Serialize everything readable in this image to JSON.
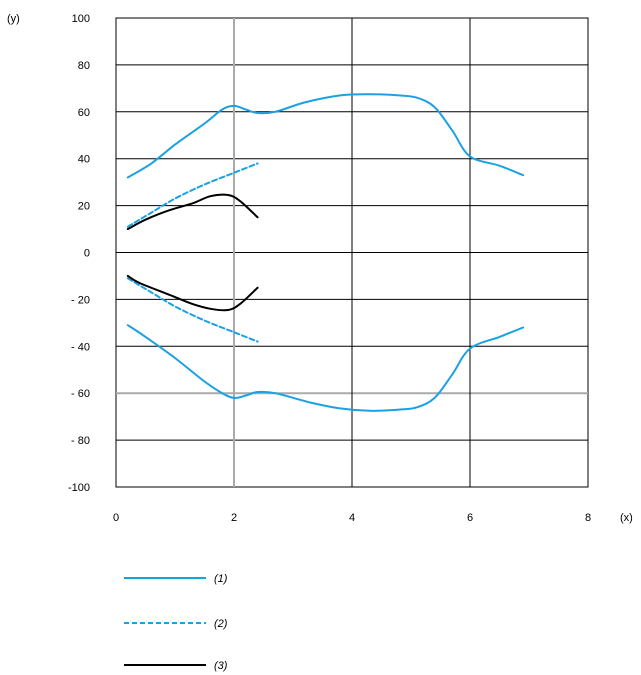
{
  "chart_data": {
    "type": "line",
    "title": "",
    "xlabel": "(x)",
    "ylabel": "(y)",
    "xlim": [
      0,
      8
    ],
    "ylim": [
      -100,
      100
    ],
    "x_ticks": [
      0,
      2,
      4,
      6,
      8
    ],
    "y_ticks": [
      100,
      80,
      60,
      40,
      20,
      0,
      -20,
      -40,
      -60,
      -80,
      -100
    ],
    "x_tick_labels": [
      "0",
      "2",
      "4",
      "6",
      "8"
    ],
    "y_tick_labels": [
      "100",
      "80",
      "60",
      "40",
      "20",
      "0",
      "- 20",
      "- 40",
      "- 60",
      "- 80",
      "-100"
    ],
    "grid": true,
    "legend_position": "bottom-left",
    "series": [
      {
        "name": "(1)",
        "color": "#1ba1e2",
        "dash": "solid",
        "upper": [
          [
            0.2,
            32
          ],
          [
            0.6,
            38
          ],
          [
            1.0,
            46
          ],
          [
            1.5,
            55
          ],
          [
            1.8,
            61
          ],
          [
            2.0,
            62.5
          ],
          [
            2.2,
            61
          ],
          [
            2.4,
            59.5
          ],
          [
            2.7,
            60
          ],
          [
            3.2,
            64
          ],
          [
            3.8,
            67
          ],
          [
            4.3,
            67.5
          ],
          [
            4.8,
            67
          ],
          [
            5.1,
            66
          ],
          [
            5.4,
            62
          ],
          [
            5.7,
            52
          ],
          [
            6.0,
            41
          ],
          [
            6.5,
            37
          ],
          [
            6.9,
            33
          ]
        ],
        "lower": [
          [
            0.2,
            -31
          ],
          [
            0.5,
            -36
          ],
          [
            1.0,
            -45
          ],
          [
            1.5,
            -55
          ],
          [
            1.8,
            -60
          ],
          [
            2.0,
            -62
          ],
          [
            2.2,
            -61
          ],
          [
            2.4,
            -59.5
          ],
          [
            2.7,
            -60
          ],
          [
            3.3,
            -64
          ],
          [
            3.8,
            -66.5
          ],
          [
            4.3,
            -67.5
          ],
          [
            4.8,
            -67
          ],
          [
            5.1,
            -66
          ],
          [
            5.4,
            -62
          ],
          [
            5.7,
            -52
          ],
          [
            6.0,
            -41
          ],
          [
            6.5,
            -36
          ],
          [
            6.9,
            -32
          ]
        ]
      },
      {
        "name": "(2)",
        "color": "#1ba1e2",
        "dash": "dashed",
        "upper": [
          [
            0.2,
            11
          ],
          [
            0.6,
            17
          ],
          [
            1.0,
            23
          ],
          [
            1.5,
            29
          ],
          [
            2.0,
            34
          ],
          [
            2.4,
            38
          ]
        ],
        "lower": [
          [
            0.2,
            -11
          ],
          [
            0.6,
            -17
          ],
          [
            1.0,
            -23
          ],
          [
            1.5,
            -29
          ],
          [
            2.0,
            -34
          ],
          [
            2.4,
            -38
          ]
        ]
      },
      {
        "name": "(3)",
        "color": "#000000",
        "dash": "solid",
        "upper": [
          [
            0.2,
            10
          ],
          [
            0.5,
            14
          ],
          [
            0.9,
            18
          ],
          [
            1.3,
            21
          ],
          [
            1.6,
            24
          ],
          [
            1.9,
            24.5
          ],
          [
            2.1,
            22
          ],
          [
            2.4,
            15
          ]
        ],
        "lower": [
          [
            0.2,
            -10
          ],
          [
            0.4,
            -13
          ],
          [
            0.9,
            -18
          ],
          [
            1.3,
            -22
          ],
          [
            1.6,
            -24
          ],
          [
            1.9,
            -24.5
          ],
          [
            2.1,
            -22
          ],
          [
            2.4,
            -15
          ]
        ]
      }
    ]
  }
}
